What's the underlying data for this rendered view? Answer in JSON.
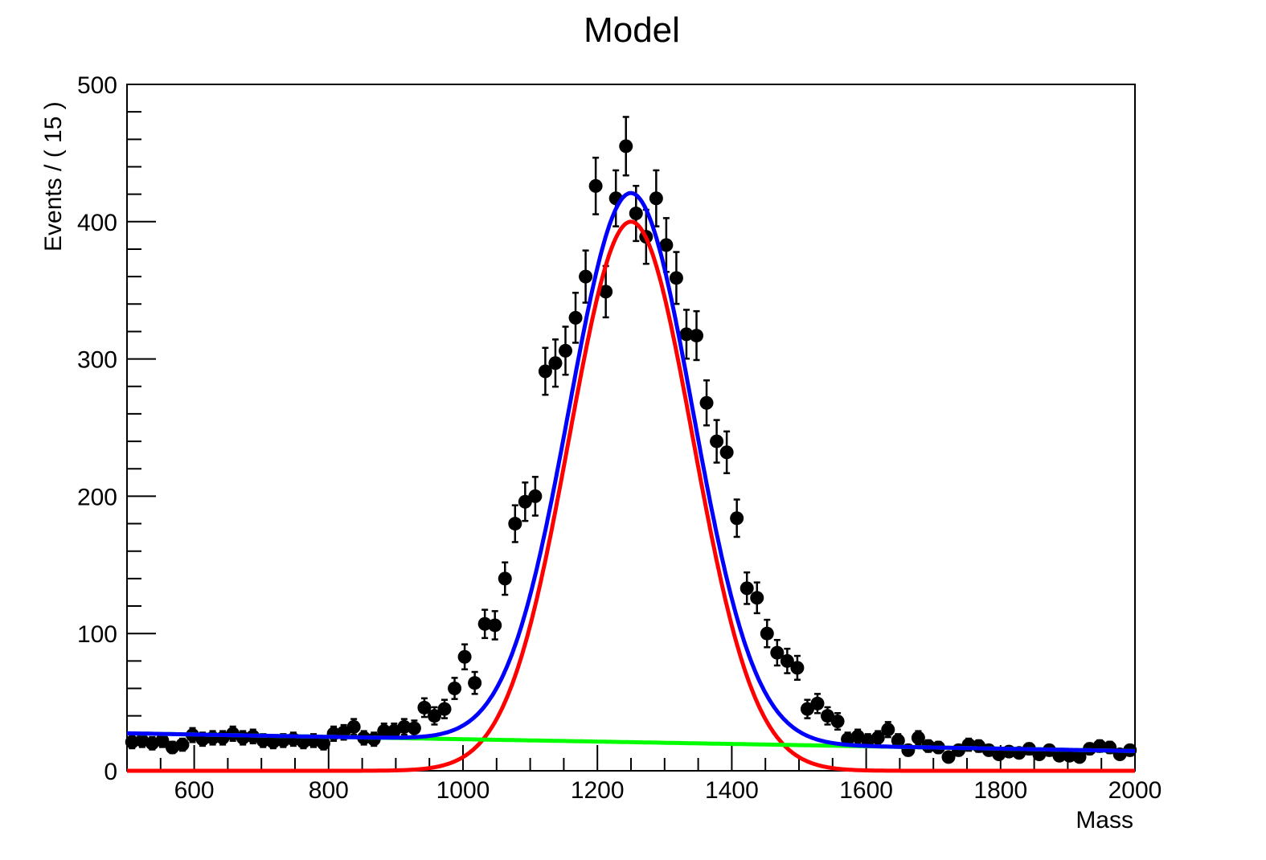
{
  "chart_data": {
    "type": "scatter",
    "title": "Model",
    "xlabel": "Mass",
    "ylabel": "Events / ( 15 )",
    "xlim": [
      500,
      2000
    ],
    "ylim": [
      0,
      500
    ],
    "xticks": [
      600,
      800,
      1000,
      1200,
      1400,
      1600,
      1800,
      2000
    ],
    "yticks": [
      0,
      100,
      200,
      300,
      400,
      500
    ],
    "grid": false,
    "legend": "none",
    "colors": {
      "data": "#000000",
      "total": "#0000ff",
      "signal": "#ff0000",
      "background": "#00ff00"
    },
    "data_points": {
      "x": [
        507.5,
        522.5,
        537.5,
        552.5,
        567.5,
        582.5,
        597.5,
        612.5,
        627.5,
        642.5,
        657.5,
        672.5,
        687.5,
        702.5,
        717.5,
        732.5,
        747.5,
        762.5,
        777.5,
        792.5,
        807.5,
        822.5,
        837.5,
        852.5,
        867.5,
        882.5,
        897.5,
        912.5,
        927.5,
        942.5,
        957.5,
        972.5,
        987.5,
        1002.5,
        1017.5,
        1032.5,
        1047.5,
        1062.5,
        1077.5,
        1092.5,
        1107.5,
        1122.5,
        1137.5,
        1152.5,
        1167.5,
        1182.5,
        1197.5,
        1212.5,
        1227.5,
        1242.5,
        1257.5,
        1272.5,
        1287.5,
        1302.5,
        1317.5,
        1332.5,
        1347.5,
        1362.5,
        1377.5,
        1392.5,
        1407.5,
        1422.5,
        1437.5,
        1452.5,
        1467.5,
        1482.5,
        1497.5,
        1512.5,
        1527.5,
        1542.5,
        1557.5,
        1572.5,
        1587.5,
        1602.5,
        1617.5,
        1632.5,
        1647.5,
        1662.5,
        1677.5,
        1692.5,
        1707.5,
        1722.5,
        1737.5,
        1752.5,
        1767.5,
        1782.5,
        1797.5,
        1812.5,
        1827.5,
        1842.5,
        1857.5,
        1872.5,
        1887.5,
        1902.5,
        1917.5,
        1932.5,
        1947.5,
        1962.5,
        1977.5,
        1992.5
      ],
      "y": [
        21,
        22,
        20,
        22,
        17,
        19,
        26,
        23,
        24,
        24,
        27,
        24,
        25,
        22,
        21,
        22,
        23,
        21,
        22,
        20,
        27,
        28,
        32,
        24,
        23,
        29,
        29,
        32,
        31,
        46,
        40,
        45,
        60,
        83,
        64,
        107,
        106,
        140,
        180,
        196,
        200,
        291,
        297,
        306,
        330,
        360,
        426,
        349,
        417,
        455,
        406,
        389,
        417,
        383,
        359,
        318,
        317,
        268,
        240,
        232,
        184,
        133,
        126,
        100,
        86,
        80,
        75,
        45,
        49,
        40,
        36,
        23,
        25,
        22,
        24,
        30,
        22,
        15,
        24,
        18,
        17,
        10,
        15,
        19,
        18,
        15,
        12,
        14,
        13,
        16,
        12,
        15,
        11,
        11,
        10,
        16,
        18,
        17,
        12,
        15
      ],
      "errors": [
        4.6,
        4.7,
        4.5,
        4.7,
        4.1,
        4.4,
        5.1,
        4.8,
        4.9,
        4.9,
        5.2,
        4.9,
        5.0,
        4.7,
        4.6,
        4.7,
        4.8,
        4.6,
        4.7,
        4.5,
        5.2,
        5.3,
        5.7,
        4.9,
        4.8,
        5.4,
        5.4,
        5.7,
        5.6,
        6.8,
        6.3,
        6.7,
        7.7,
        9.1,
        8.0,
        10.3,
        10.3,
        11.8,
        13.4,
        14.0,
        14.1,
        17.1,
        17.2,
        17.5,
        18.2,
        19.0,
        20.6,
        18.7,
        20.4,
        21.3,
        20.1,
        19.7,
        20.4,
        19.6,
        18.9,
        17.8,
        17.8,
        16.4,
        15.5,
        15.2,
        13.6,
        11.5,
        11.2,
        10.0,
        9.3,
        8.9,
        8.7,
        6.7,
        7.0,
        6.3,
        6.0,
        4.8,
        5.0,
        4.7,
        4.9,
        5.5,
        4.7,
        3.9,
        4.9,
        4.2,
        4.1,
        3.2,
        3.9,
        4.4,
        4.2,
        3.9,
        3.5,
        3.7,
        3.6,
        4.0,
        3.5,
        3.9,
        3.3,
        3.3,
        3.2,
        4.0,
        4.2,
        4.1,
        3.5,
        3.9
      ]
    },
    "series": [
      {
        "color": "#0000ff",
        "model": "total",
        "params": {
          "mean": 1250,
          "sigma": 92,
          "amp": 400,
          "bkg_a": 27.3,
          "bkg_b": -0.0086
        }
      },
      {
        "color": "#ff0000",
        "model": "gaussian",
        "params": {
          "mean": 1250,
          "sigma": 92,
          "amp": 400
        }
      },
      {
        "color": "#00ff00",
        "model": "linear",
        "params": {
          "a": 27.3,
          "b": -0.0086
        }
      }
    ]
  }
}
